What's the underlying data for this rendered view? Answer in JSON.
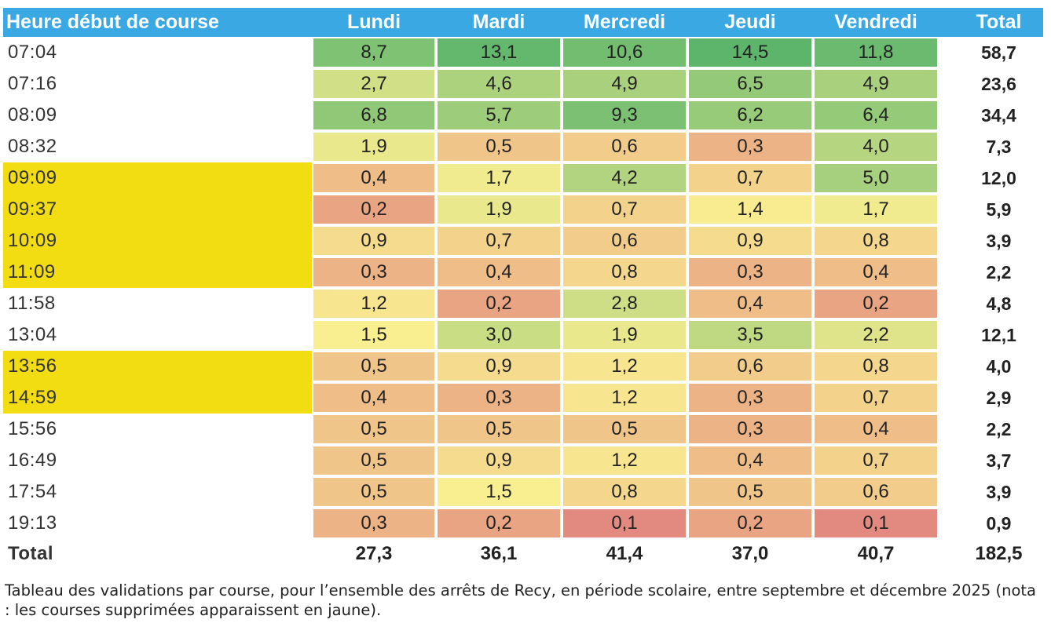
{
  "table": {
    "headers": [
      "Heure début de course",
      "Lundi",
      "Mardi",
      "Mercredi",
      "Jeudi",
      "Vendredi",
      "Total"
    ],
    "rows": [
      {
        "time": "07:04",
        "removed": false,
        "values": [
          "8,7",
          "13,1",
          "10,6",
          "14,5",
          "11,8"
        ],
        "total": "58,7"
      },
      {
        "time": "07:16",
        "removed": false,
        "values": [
          "2,7",
          "4,6",
          "4,9",
          "6,5",
          "4,9"
        ],
        "total": "23,6"
      },
      {
        "time": "08:09",
        "removed": false,
        "values": [
          "6,8",
          "5,7",
          "9,3",
          "6,2",
          "6,4"
        ],
        "total": "34,4"
      },
      {
        "time": "08:32",
        "removed": false,
        "values": [
          "1,9",
          "0,5",
          "0,6",
          "0,3",
          "4,0"
        ],
        "total": "7,3"
      },
      {
        "time": "09:09",
        "removed": true,
        "values": [
          "0,4",
          "1,7",
          "4,2",
          "0,7",
          "5,0"
        ],
        "total": "12,0"
      },
      {
        "time": "09:37",
        "removed": true,
        "values": [
          "0,2",
          "1,9",
          "0,7",
          "1,4",
          "1,7"
        ],
        "total": "5,9"
      },
      {
        "time": "10:09",
        "removed": true,
        "values": [
          "0,9",
          "0,7",
          "0,6",
          "0,9",
          "0,8"
        ],
        "total": "3,9"
      },
      {
        "time": "11:09",
        "removed": true,
        "values": [
          "0,3",
          "0,4",
          "0,8",
          "0,3",
          "0,4"
        ],
        "total": "2,2"
      },
      {
        "time": "11:58",
        "removed": false,
        "values": [
          "1,2",
          "0,2",
          "2,8",
          "0,4",
          "0,2"
        ],
        "total": "4,8"
      },
      {
        "time": "13:04",
        "removed": false,
        "values": [
          "1,5",
          "3,0",
          "1,9",
          "3,5",
          "2,2"
        ],
        "total": "12,1"
      },
      {
        "time": "13:56",
        "removed": true,
        "values": [
          "0,5",
          "0,9",
          "1,2",
          "0,6",
          "0,8"
        ],
        "total": "4,0"
      },
      {
        "time": "14:59",
        "removed": true,
        "values": [
          "0,4",
          "0,3",
          "1,2",
          "0,3",
          "0,7"
        ],
        "total": "2,9"
      },
      {
        "time": "15:56",
        "removed": false,
        "values": [
          "0,5",
          "0,5",
          "0,5",
          "0,3",
          "0,4"
        ],
        "total": "2,2"
      },
      {
        "time": "16:49",
        "removed": false,
        "values": [
          "0,5",
          "0,9",
          "1,2",
          "0,4",
          "0,7"
        ],
        "total": "3,7"
      },
      {
        "time": "17:54",
        "removed": false,
        "values": [
          "0,5",
          "1,5",
          "0,8",
          "0,5",
          "0,6"
        ],
        "total": "3,9"
      },
      {
        "time": "19:13",
        "removed": false,
        "values": [
          "0,3",
          "0,2",
          "0,1",
          "0,2",
          "0,1"
        ],
        "total": "0,9"
      }
    ],
    "totals": {
      "label": "Total",
      "values": [
        "27,3",
        "36,1",
        "41,4",
        "37,0",
        "40,7"
      ],
      "total": "182,5"
    }
  },
  "colors": {
    "header_bg": "#3aa8e3",
    "removed_highlight": "#f2dd12",
    "scale_low": "#e38a80",
    "scale_mid": "#f9ee90",
    "scale_high": "#5db56c"
  },
  "caption": "Tableau des validations par course, pour l’ensemble des arrêts de Recy, en période scolaire, entre septembre et décembre 2025 (nota : les courses supprimées apparaissent en jaune)."
}
